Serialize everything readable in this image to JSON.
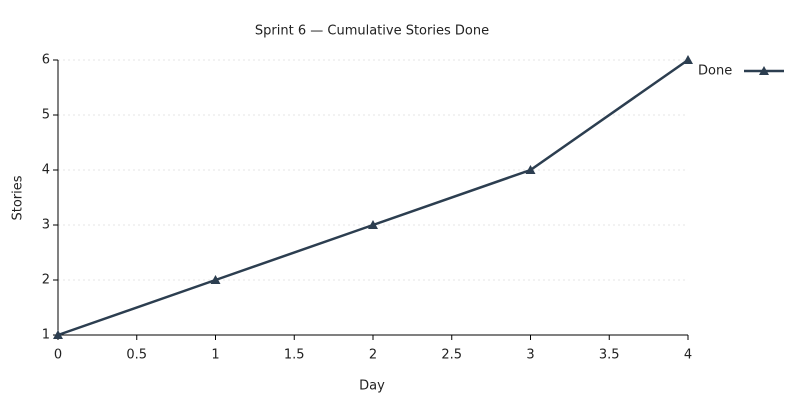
{
  "chart_data": {
    "type": "line",
    "title": "Sprint 6 — Cumulative Stories Done",
    "x_label": "Day",
    "y_label": "Stories",
    "x": [
      0,
      1,
      2,
      3,
      4
    ],
    "series": [
      {
        "name": "Done",
        "color": "#2c3e50",
        "values": [
          1,
          2,
          3,
          4,
          6
        ]
      }
    ],
    "xlim": [
      0,
      4
    ],
    "xticks": [
      0,
      0.5,
      1,
      1.5,
      2,
      2.5,
      3,
      3.5,
      4
    ],
    "ylim": [
      1,
      6
    ],
    "yticks": [
      1,
      2,
      3,
      4,
      5,
      6
    ],
    "grid": true,
    "legend": "upper right"
  }
}
